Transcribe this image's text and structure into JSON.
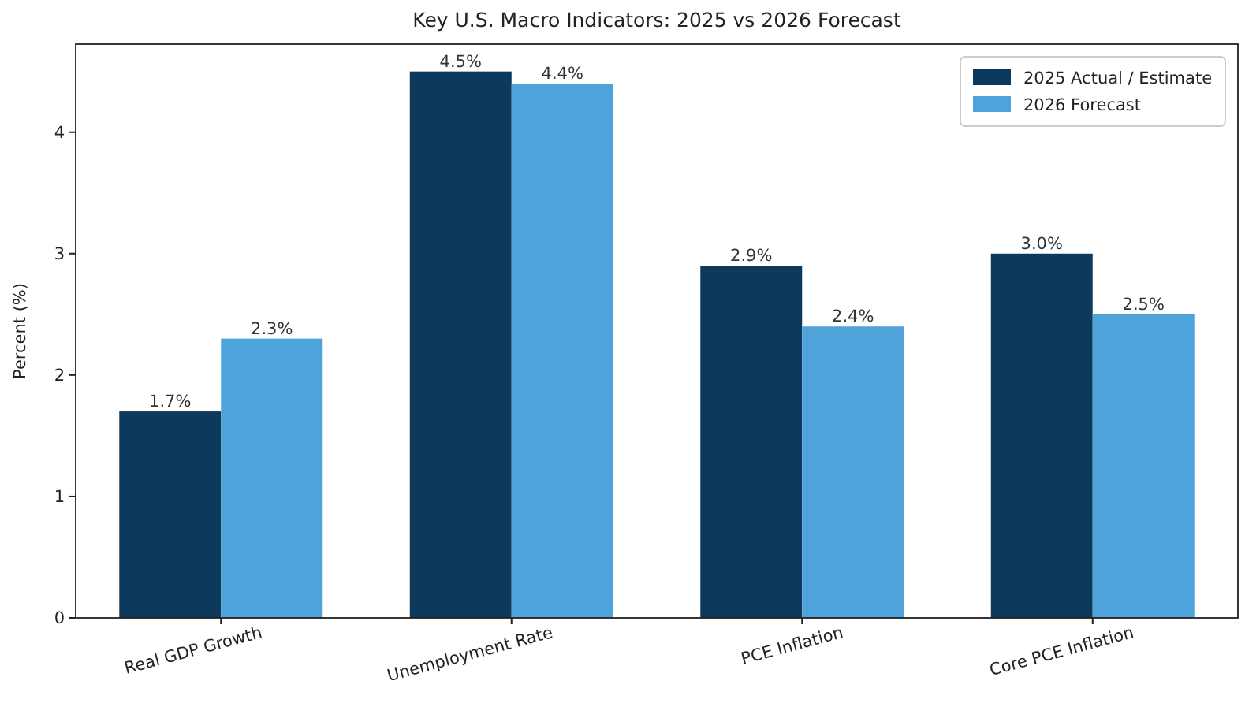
{
  "chart_data": {
    "type": "bar",
    "title": "Key U.S. Macro Indicators: 2025 vs 2026 Forecast",
    "ylabel": "Percent (%)",
    "categories": [
      "Real GDP Growth",
      "Unemployment Rate",
      "PCE Inflation",
      "Core PCE Inflation"
    ],
    "series": [
      {
        "name": "2025 Actual / Estimate",
        "color": "#0d3a5c",
        "values": [
          1.7,
          4.5,
          2.9,
          3.0
        ],
        "value_labels": [
          "1.7%",
          "4.5%",
          "2.9%",
          "3.0%"
        ]
      },
      {
        "name": "2026 Forecast",
        "color": "#4ea3db",
        "values": [
          2.3,
          4.4,
          2.4,
          2.5
        ],
        "value_labels": [
          "2.3%",
          "4.4%",
          "2.4%",
          "2.5%"
        ]
      }
    ],
    "ylim": [
      0,
      4.725
    ],
    "yticks": [
      0,
      1,
      2,
      3,
      4
    ],
    "grid": false,
    "legend": "top right"
  }
}
